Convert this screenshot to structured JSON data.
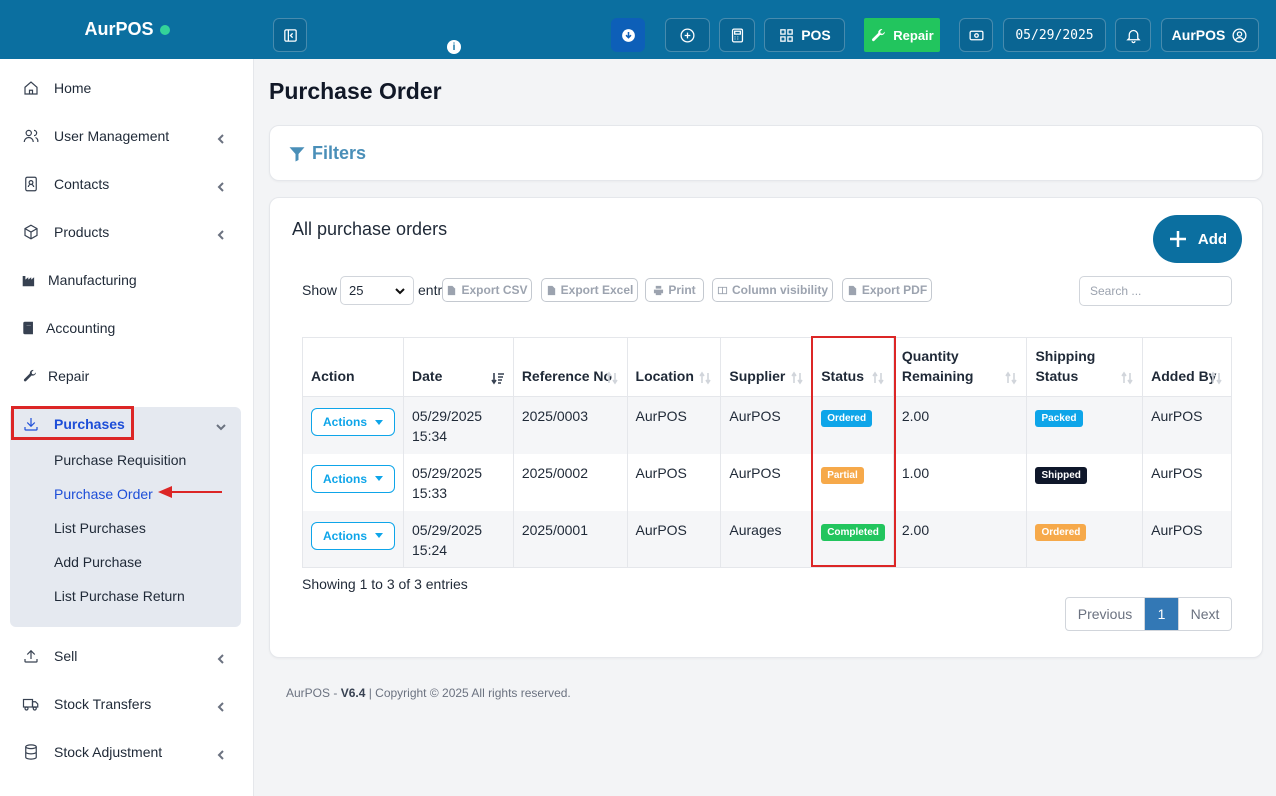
{
  "app": {
    "brand": "AurPOS"
  },
  "topbar": {
    "pos_label": "POS",
    "repair_label": "Repair",
    "date": "05/29/2025",
    "user": "AurPOS"
  },
  "sidebar": {
    "items": [
      {
        "label": "Home",
        "icon": "home-icon"
      },
      {
        "label": "User Management",
        "icon": "users-icon"
      },
      {
        "label": "Contacts",
        "icon": "contact-icon"
      },
      {
        "label": "Products",
        "icon": "box-icon"
      },
      {
        "label": "Manufacturing",
        "icon": "factory-icon"
      },
      {
        "label": "Accounting",
        "icon": "book-icon"
      },
      {
        "label": "Repair",
        "icon": "wrench-icon"
      },
      {
        "label": "Purchases",
        "icon": "download-icon"
      },
      {
        "label": "Sell",
        "icon": "upload-icon"
      },
      {
        "label": "Stock Transfers",
        "icon": "truck-icon"
      },
      {
        "label": "Stock Adjustment",
        "icon": "database-icon"
      }
    ],
    "purchases_sub": [
      "Purchase Requisition",
      "Purchase Order",
      "List Purchases",
      "Add Purchase",
      "List Purchase Return"
    ]
  },
  "page": {
    "title": "Purchase Order",
    "filters_label": "Filters",
    "card_title": "All purchase orders",
    "add_label": "Add",
    "show_label": "Show",
    "show_value": "25",
    "entries_label": "entries",
    "export_buttons": [
      "Export CSV",
      "Export Excel",
      "Print",
      "Column visibility",
      "Export PDF"
    ],
    "search_placeholder": "Search ..."
  },
  "table": {
    "headers": [
      "Action",
      "Date",
      "Reference No",
      "Location",
      "Supplier",
      "Status",
      "Quantity Remaining",
      "Shipping Status",
      "Added By"
    ],
    "action_label": "Actions",
    "rows": [
      {
        "date": "05/29/2025 15:34",
        "ref": "2025/0003",
        "location": "AurPOS",
        "supplier": "AurPOS",
        "status": "Ordered",
        "status_color": "#0ea5e9",
        "qty": "2.00",
        "shipping": "Packed",
        "shipping_color": "#0ea5e9",
        "added_by": "AurPOS"
      },
      {
        "date": "05/29/2025 15:33",
        "ref": "2025/0002",
        "location": "AurPOS",
        "supplier": "AurPOS",
        "status": "Partial",
        "status_color": "#f6a94a",
        "qty": "1.00",
        "shipping": "Shipped",
        "shipping_color": "#0f172a",
        "added_by": "AurPOS"
      },
      {
        "date": "05/29/2025 15:24",
        "ref": "2025/0001",
        "location": "AurPOS",
        "supplier": "Aurages",
        "status": "Completed",
        "status_color": "#22c55e",
        "qty": "2.00",
        "shipping": "Ordered",
        "shipping_color": "#f6a94a",
        "added_by": "AurPOS"
      }
    ]
  },
  "pagination": {
    "info": "Showing 1 to 3 of 3 entries",
    "previous": "Previous",
    "current": "1",
    "next": "Next"
  },
  "footer": {
    "prefix": "AurPOS - ",
    "version": "V6.4",
    "suffix": " | Copyright © 2025 All rights reserved."
  }
}
